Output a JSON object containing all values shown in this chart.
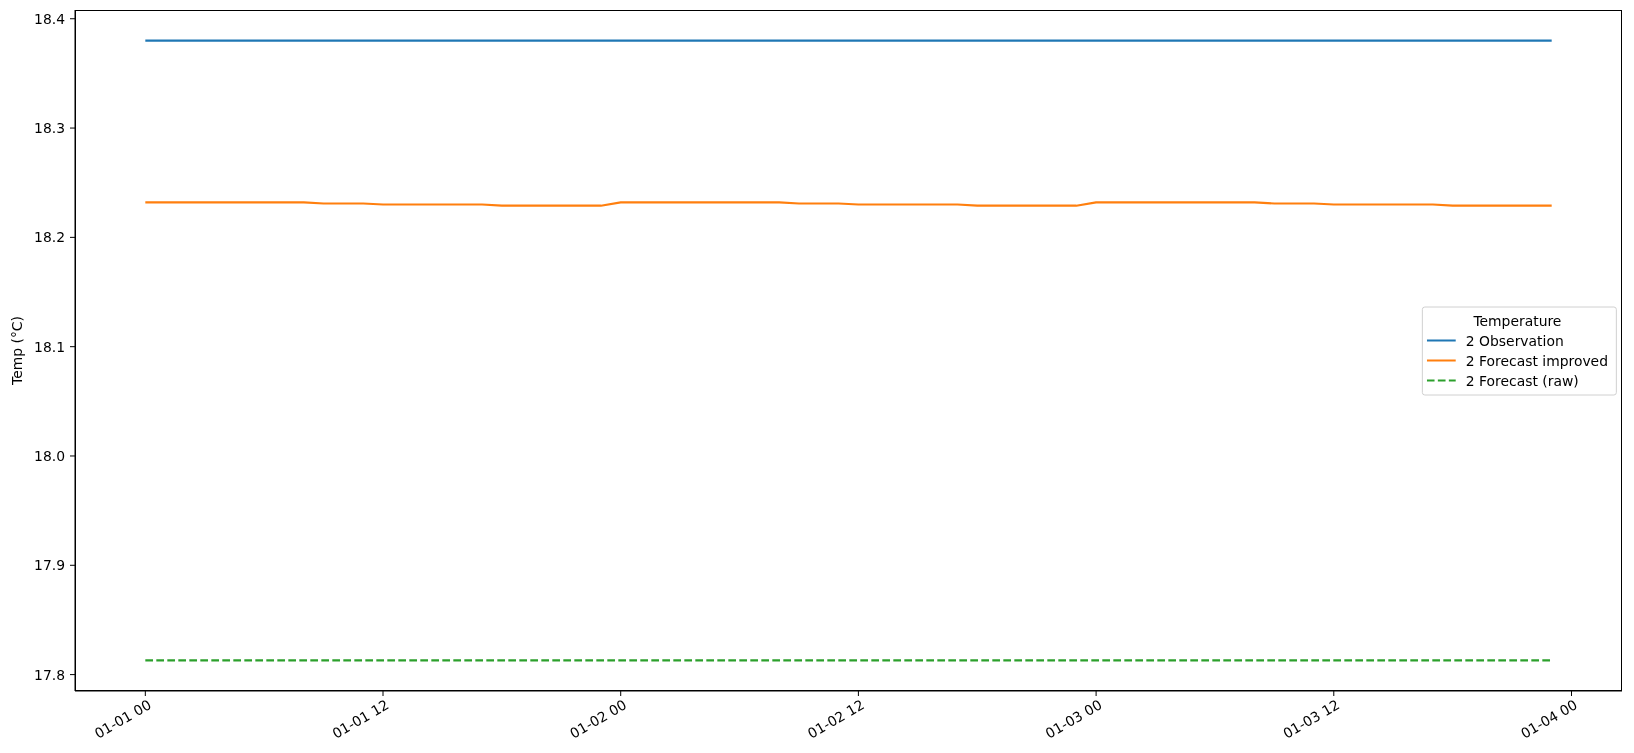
{
  "chart_data": {
    "type": "line",
    "ylabel": "Temp (°C)",
    "legend_title": "Temperature",
    "legend": "right",
    "x": [
      "2000-01-01T00:00",
      "2000-01-01T01:00",
      "2000-01-01T02:00",
      "2000-01-01T03:00",
      "2000-01-01T04:00",
      "2000-01-01T05:00",
      "2000-01-01T06:00",
      "2000-01-01T07:00",
      "2000-01-01T08:00",
      "2000-01-01T09:00",
      "2000-01-01T10:00",
      "2000-01-01T11:00",
      "2000-01-01T12:00",
      "2000-01-01T13:00",
      "2000-01-01T14:00",
      "2000-01-01T15:00",
      "2000-01-01T16:00",
      "2000-01-01T17:00",
      "2000-01-01T18:00",
      "2000-01-01T19:00",
      "2000-01-01T20:00",
      "2000-01-01T21:00",
      "2000-01-01T22:00",
      "2000-01-01T23:00",
      "2000-01-02T00:00",
      "2000-01-02T01:00",
      "2000-01-02T02:00",
      "2000-01-02T03:00",
      "2000-01-02T04:00",
      "2000-01-02T05:00",
      "2000-01-02T06:00",
      "2000-01-02T07:00",
      "2000-01-02T08:00",
      "2000-01-02T09:00",
      "2000-01-02T10:00",
      "2000-01-02T11:00",
      "2000-01-02T12:00",
      "2000-01-02T13:00",
      "2000-01-02T14:00",
      "2000-01-02T15:00",
      "2000-01-02T16:00",
      "2000-01-02T17:00",
      "2000-01-02T18:00",
      "2000-01-02T19:00",
      "2000-01-02T20:00",
      "2000-01-02T21:00",
      "2000-01-02T22:00",
      "2000-01-02T23:00",
      "2000-01-03T00:00",
      "2000-01-03T01:00",
      "2000-01-03T02:00",
      "2000-01-03T03:00",
      "2000-01-03T04:00",
      "2000-01-03T05:00",
      "2000-01-03T06:00",
      "2000-01-03T07:00",
      "2000-01-03T08:00",
      "2000-01-03T09:00",
      "2000-01-03T10:00",
      "2000-01-03T11:00",
      "2000-01-03T12:00",
      "2000-01-03T13:00",
      "2000-01-03T14:00",
      "2000-01-03T15:00",
      "2000-01-03T16:00",
      "2000-01-03T17:00",
      "2000-01-03T18:00",
      "2000-01-03T19:00",
      "2000-01-03T20:00",
      "2000-01-03T21:00",
      "2000-01-03T22:00",
      "2000-01-03T23:00"
    ],
    "xlim": [
      "1999-12-31T20:27",
      "2000-01-04T02:33"
    ],
    "xticks": [
      {
        "value": "2000-01-01T00:00",
        "label": "01-01 00"
      },
      {
        "value": "2000-01-01T12:00",
        "label": "01-01 12"
      },
      {
        "value": "2000-01-02T00:00",
        "label": "01-02 00"
      },
      {
        "value": "2000-01-02T12:00",
        "label": "01-02 12"
      },
      {
        "value": "2000-01-03T00:00",
        "label": "01-03 00"
      },
      {
        "value": "2000-01-03T12:00",
        "label": "01-03 12"
      },
      {
        "value": "2000-01-04T00:00",
        "label": "01-04 00"
      }
    ],
    "ylim": [
      17.785,
      18.408
    ],
    "yticks": [
      17.8,
      17.9,
      {
        "value": 18,
        "label": "18.0"
      },
      18.1,
      18.2,
      18.3,
      18.4
    ],
    "series": [
      {
        "name": "2 Observation",
        "color": "#1f77b4",
        "values": [
          18.38,
          18.38,
          18.38,
          18.38,
          18.38,
          18.38,
          18.38,
          18.38,
          18.38,
          18.38,
          18.38,
          18.38,
          18.38,
          18.38,
          18.38,
          18.38,
          18.38,
          18.38,
          18.38,
          18.38,
          18.38,
          18.38,
          18.38,
          18.38,
          18.38,
          18.38,
          18.38,
          18.38,
          18.38,
          18.38,
          18.38,
          18.38,
          18.38,
          18.38,
          18.38,
          18.38,
          18.38,
          18.38,
          18.38,
          18.38,
          18.38,
          18.38,
          18.38,
          18.38,
          18.38,
          18.38,
          18.38,
          18.38,
          18.38,
          18.38,
          18.38,
          18.38,
          18.38,
          18.38,
          18.38,
          18.38,
          18.38,
          18.38,
          18.38,
          18.38,
          18.38,
          18.38,
          18.38,
          18.38,
          18.38,
          18.38,
          18.38,
          18.38,
          18.38,
          18.38,
          18.38,
          18.38
        ]
      },
      {
        "name": "2 Forecast improved",
        "color": "#ff7f0e",
        "values": [
          18.232,
          18.232,
          18.232,
          18.232,
          18.232,
          18.232,
          18.232,
          18.232,
          18.232,
          18.231,
          18.231,
          18.231,
          18.23,
          18.23,
          18.23,
          18.23,
          18.23,
          18.23,
          18.229,
          18.229,
          18.229,
          18.229,
          18.229,
          18.229,
          18.232,
          18.232,
          18.232,
          18.232,
          18.232,
          18.232,
          18.232,
          18.232,
          18.232,
          18.231,
          18.231,
          18.231,
          18.23,
          18.23,
          18.23,
          18.23,
          18.23,
          18.23,
          18.229,
          18.229,
          18.229,
          18.229,
          18.229,
          18.229,
          18.232,
          18.232,
          18.232,
          18.232,
          18.232,
          18.232,
          18.232,
          18.232,
          18.232,
          18.231,
          18.231,
          18.231,
          18.23,
          18.23,
          18.23,
          18.23,
          18.23,
          18.23,
          18.229,
          18.229,
          18.229,
          18.229,
          18.229,
          18.229
        ]
      },
      {
        "name": "2 Forecast (raw)",
        "color": "#2ca02c",
        "line_style": "dashed",
        "values": [
          17.813,
          17.813,
          17.813,
          17.813,
          17.813,
          17.813,
          17.813,
          17.813,
          17.813,
          17.813,
          17.813,
          17.813,
          17.813,
          17.813,
          17.813,
          17.813,
          17.813,
          17.813,
          17.813,
          17.813,
          17.813,
          17.813,
          17.813,
          17.813,
          17.813,
          17.813,
          17.813,
          17.813,
          17.813,
          17.813,
          17.813,
          17.813,
          17.813,
          17.813,
          17.813,
          17.813,
          17.813,
          17.813,
          17.813,
          17.813,
          17.813,
          17.813,
          17.813,
          17.813,
          17.813,
          17.813,
          17.813,
          17.813,
          17.813,
          17.813,
          17.813,
          17.813,
          17.813,
          17.813,
          17.813,
          17.813,
          17.813,
          17.813,
          17.813,
          17.813,
          17.813,
          17.813,
          17.813,
          17.813,
          17.813,
          17.813,
          17.813,
          17.813,
          17.813,
          17.813,
          17.813,
          17.813
        ]
      }
    ]
  }
}
